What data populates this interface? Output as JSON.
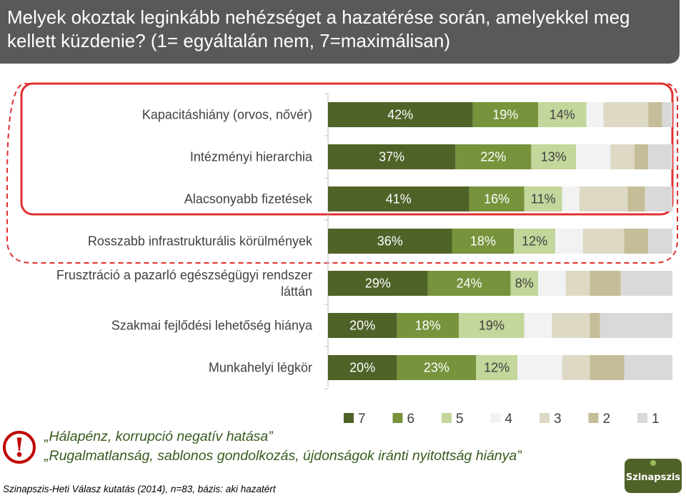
{
  "title": "Melyek okoztak leginkább nehézséget a hazatérése során, amelyekkel meg kellett küzdenie? (1= egyáltalán nem, 7=maximálisan)",
  "colors": {
    "7": "#4f6228",
    "6": "#77933c",
    "5": "#c3d69b",
    "4": "#f2f2f2",
    "3": "#ddd9c4",
    "2": "#c4bd97",
    "1": "#d9d9d9",
    "highlight": "#e03030"
  },
  "chart_data": {
    "type": "bar",
    "stacked": true,
    "orientation": "horizontal",
    "xlim": [
      0,
      100
    ],
    "categories": [
      "Kapacitáshiány (orvos, nővér)",
      "Intézményi hierarchia",
      "Alacsonyabb fizetések",
      "Rosszabb infrastrukturális körülmények",
      "Frusztráció a pazarló egészségügyi rendszer láttán",
      "Szakmai fejlődési lehetőség hiánya",
      "Munkahelyi légkör"
    ],
    "series": [
      {
        "name": "7",
        "values": [
          42,
          37,
          41,
          36,
          29,
          20,
          20
        ]
      },
      {
        "name": "6",
        "values": [
          19,
          22,
          16,
          18,
          24,
          18,
          23
        ]
      },
      {
        "name": "5",
        "values": [
          14,
          13,
          11,
          12,
          8,
          19,
          12
        ]
      },
      {
        "name": "4",
        "values": [
          5,
          10,
          5,
          8,
          8,
          8,
          13
        ]
      },
      {
        "name": "3",
        "values": [
          13,
          7,
          14,
          12,
          7,
          11,
          8
        ]
      },
      {
        "name": "2",
        "values": [
          4,
          4,
          5,
          7,
          9,
          3,
          10
        ]
      },
      {
        "name": "1",
        "values": [
          3,
          7,
          8,
          7,
          15,
          21,
          14
        ]
      }
    ],
    "data_labels": [
      [
        "42%",
        "19%",
        "14%"
      ],
      [
        "37%",
        "22%",
        "13%"
      ],
      [
        "41%",
        "16%",
        "11%"
      ],
      [
        "36%",
        "18%",
        "12%"
      ],
      [
        "29%",
        "24%",
        "8%"
      ],
      [
        "20%",
        "18%",
        "19%"
      ],
      [
        "20%",
        "23%",
        "12%"
      ]
    ],
    "legend_labels": [
      "7",
      "6",
      "5",
      "4",
      "3",
      "2",
      "1"
    ],
    "legend_position": "bottom-right"
  },
  "notes": [
    "„Hálapénz, korrupció negatív hatása”",
    "„Rugalmatlanság, sablonos gondolkozás, újdonságok iránti nyitottság hiánya”"
  ],
  "warning_symbol": "!",
  "source": "Szinapszis-Heti Válasz kutatás (2014), n=83, bázis: aki hazatért",
  "logo_text": "Szinapszis"
}
